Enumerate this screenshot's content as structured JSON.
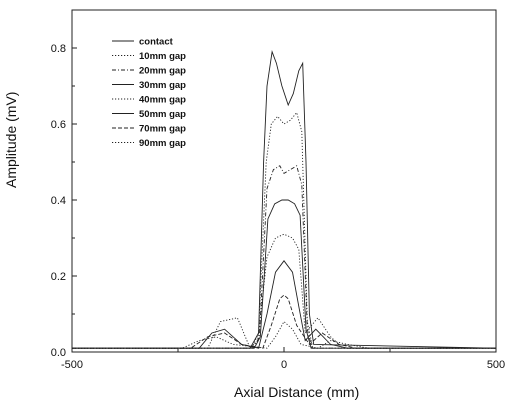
{
  "chart_data": {
    "type": "line",
    "xlabel": "Axial Distance (mm)",
    "ylabel": "Amplitude (mV)",
    "xlim": [
      -500,
      500
    ],
    "ylim": [
      0,
      0.9
    ],
    "xticks": [
      "-500",
      "0",
      "500"
    ],
    "yticks": [
      "0.0",
      "0.2",
      "0.4",
      "0.6",
      "0.8"
    ],
    "legend_position": "top-left",
    "grid": false,
    "series": [
      {
        "name": "contact",
        "style": "solid",
        "points": [
          [
            -500,
            0.01
          ],
          [
            -80,
            0.01
          ],
          [
            -60,
            0.05
          ],
          [
            -48,
            0.5
          ],
          [
            -40,
            0.7
          ],
          [
            -28,
            0.79
          ],
          [
            -18,
            0.76
          ],
          [
            -5,
            0.7
          ],
          [
            10,
            0.65
          ],
          [
            22,
            0.68
          ],
          [
            35,
            0.74
          ],
          [
            44,
            0.76
          ],
          [
            52,
            0.5
          ],
          [
            60,
            0.1
          ],
          [
            70,
            0.02
          ],
          [
            500,
            0.01
          ]
        ]
      },
      {
        "name": "10mm gap",
        "style": "dotted",
        "points": [
          [
            -500,
            0.01
          ],
          [
            -76,
            0.01
          ],
          [
            -60,
            0.05
          ],
          [
            -42,
            0.5
          ],
          [
            -30,
            0.6
          ],
          [
            -15,
            0.62
          ],
          [
            0,
            0.6
          ],
          [
            15,
            0.61
          ],
          [
            30,
            0.63
          ],
          [
            42,
            0.58
          ],
          [
            55,
            0.08
          ],
          [
            68,
            0.01
          ],
          [
            500,
            0.01
          ]
        ]
      },
      {
        "name": "20mm gap",
        "style": "dashdot",
        "points": [
          [
            -500,
            0.01
          ],
          [
            -72,
            0.01
          ],
          [
            -58,
            0.04
          ],
          [
            -40,
            0.43
          ],
          [
            -25,
            0.48
          ],
          [
            -10,
            0.49
          ],
          [
            0,
            0.47
          ],
          [
            15,
            0.48
          ],
          [
            30,
            0.49
          ],
          [
            42,
            0.44
          ],
          [
            55,
            0.06
          ],
          [
            66,
            0.01
          ],
          [
            500,
            0.01
          ]
        ]
      },
      {
        "name": "30mm gap",
        "style": "solid",
        "points": [
          [
            -500,
            0.01
          ],
          [
            -70,
            0.01
          ],
          [
            -56,
            0.04
          ],
          [
            -38,
            0.35
          ],
          [
            -22,
            0.39
          ],
          [
            -5,
            0.4
          ],
          [
            10,
            0.4
          ],
          [
            25,
            0.39
          ],
          [
            38,
            0.36
          ],
          [
            52,
            0.06
          ],
          [
            64,
            0.01
          ],
          [
            500,
            0.01
          ]
        ]
      },
      {
        "name": "40mm gap",
        "style": "dotted",
        "points": [
          [
            -500,
            0.01
          ],
          [
            -180,
            0.01
          ],
          [
            -150,
            0.08
          ],
          [
            -110,
            0.09
          ],
          [
            -80,
            0.01
          ],
          [
            -62,
            0.03
          ],
          [
            -40,
            0.25
          ],
          [
            -20,
            0.3
          ],
          [
            0,
            0.31
          ],
          [
            20,
            0.3
          ],
          [
            35,
            0.27
          ],
          [
            50,
            0.05
          ],
          [
            80,
            0.09
          ],
          [
            110,
            0.04
          ],
          [
            140,
            0.01
          ],
          [
            500,
            0.01
          ]
        ]
      },
      {
        "name": "50mm gap",
        "style": "solid",
        "points": [
          [
            -500,
            0.01
          ],
          [
            -200,
            0.01
          ],
          [
            -170,
            0.05
          ],
          [
            -140,
            0.06
          ],
          [
            -100,
            0.02
          ],
          [
            -60,
            0.01
          ],
          [
            -40,
            0.1
          ],
          [
            -20,
            0.21
          ],
          [
            0,
            0.24
          ],
          [
            20,
            0.21
          ],
          [
            35,
            0.12
          ],
          [
            50,
            0.03
          ],
          [
            75,
            0.06
          ],
          [
            110,
            0.02
          ],
          [
            150,
            0.01
          ],
          [
            500,
            0.01
          ]
        ]
      },
      {
        "name": "70mm gap",
        "style": "dashed",
        "points": [
          [
            -500,
            0.01
          ],
          [
            -220,
            0.01
          ],
          [
            -180,
            0.04
          ],
          [
            -140,
            0.05
          ],
          [
            -100,
            0.02
          ],
          [
            -50,
            0.01
          ],
          [
            -30,
            0.07
          ],
          [
            -10,
            0.14
          ],
          [
            0,
            0.15
          ],
          [
            10,
            0.14
          ],
          [
            30,
            0.07
          ],
          [
            60,
            0.02
          ],
          [
            90,
            0.05
          ],
          [
            130,
            0.02
          ],
          [
            170,
            0.01
          ],
          [
            500,
            0.01
          ]
        ]
      },
      {
        "name": "90mm gap",
        "style": "dotted",
        "points": [
          [
            -500,
            0.01
          ],
          [
            -240,
            0.01
          ],
          [
            -200,
            0.03
          ],
          [
            -160,
            0.04
          ],
          [
            -120,
            0.02
          ],
          [
            -40,
            0.01
          ],
          [
            -20,
            0.04
          ],
          [
            0,
            0.08
          ],
          [
            20,
            0.06
          ],
          [
            40,
            0.02
          ],
          [
            80,
            0.01
          ],
          [
            110,
            0.03
          ],
          [
            150,
            0.02
          ],
          [
            200,
            0.01
          ],
          [
            500,
            0.01
          ]
        ]
      }
    ]
  }
}
